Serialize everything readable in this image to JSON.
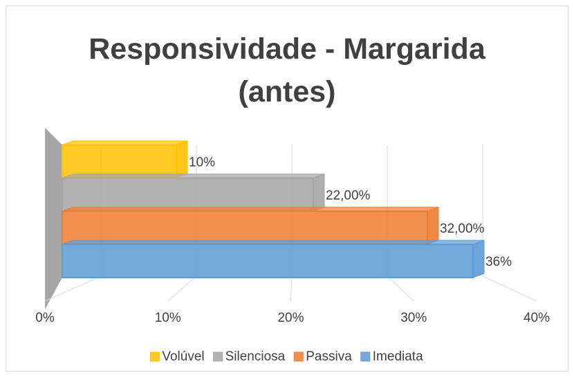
{
  "chart_data": {
    "type": "bar3d",
    "title": "Responsividade - Margarida (antes)",
    "series": [
      {
        "name": "Volúvel",
        "color": "#ffc000",
        "values": [
          10
        ],
        "value_labels": [
          "10%"
        ]
      },
      {
        "name": "Silenciosa",
        "color": "#a5a5a5",
        "values": [
          22
        ],
        "value_labels": [
          "22,00%"
        ]
      },
      {
        "name": "Passiva",
        "color": "#ed7d31",
        "values": [
          32
        ],
        "value_labels": [
          "32,00%"
        ]
      },
      {
        "name": "Imediata",
        "color": "#5b9bd5",
        "values": [
          36
        ],
        "value_labels": [
          "36%"
        ]
      }
    ],
    "xlim": [
      0,
      40
    ],
    "xticks": [
      {
        "value": 0,
        "label": "0%"
      },
      {
        "value": 10,
        "label": "10%"
      },
      {
        "value": 20,
        "label": "20%"
      },
      {
        "value": 30,
        "label": "30%"
      },
      {
        "value": 40,
        "label": "40%"
      }
    ],
    "grid": true,
    "legend": "bottom"
  }
}
